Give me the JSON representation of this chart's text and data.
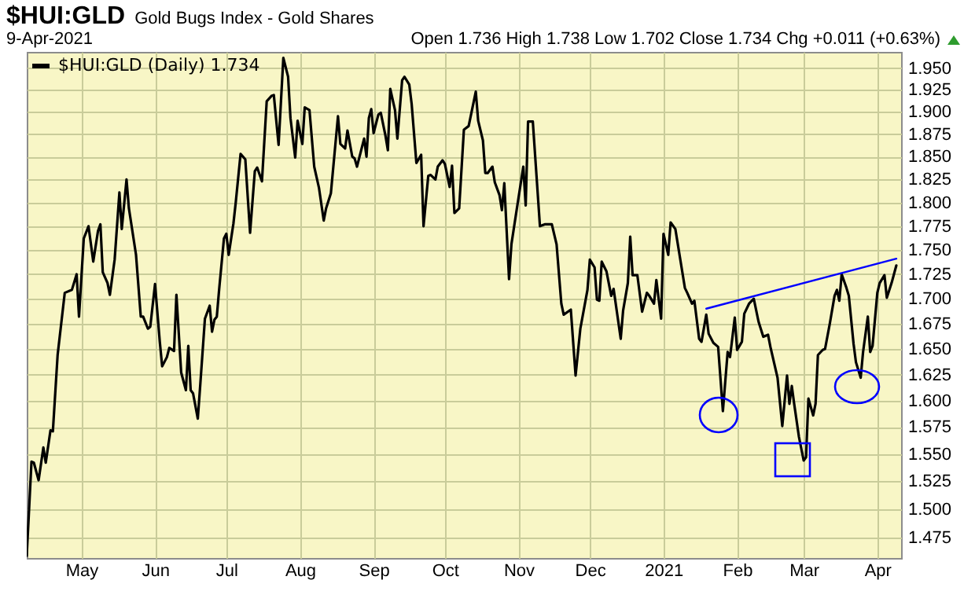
{
  "chart_data": {
    "type": "line",
    "title": "$HUI:GLD",
    "subtitle": "Gold Bugs Index - Gold Shares",
    "annotations": [
      "9-Apr-2021",
      "Open 1.736 High 1.738 Low 1.702 Close 1.734 Chg +0.011 (+0.63%)"
    ],
    "legend": "top left",
    "grid": true,
    "xlim": [
      "2020-04-08",
      "2021-04-11"
    ],
    "xticks": [
      {
        "value": "2020-05-01",
        "label": "May"
      },
      {
        "value": "2020-06-01",
        "label": "Jun"
      },
      {
        "value": "2020-07-01",
        "label": "Jul"
      },
      {
        "value": "2020-08-01",
        "label": "Aug"
      },
      {
        "value": "2020-09-01",
        "label": "Sep"
      },
      {
        "value": "2020-10-01",
        "label": "Oct"
      },
      {
        "value": "2020-11-01",
        "label": "Nov"
      },
      {
        "value": "2020-12-01",
        "label": "Dec"
      },
      {
        "value": "2021-01-01",
        "label": "2021"
      },
      {
        "value": "2021-02-01",
        "label": "Feb"
      },
      {
        "value": "2021-03-01",
        "label": "Mar"
      },
      {
        "value": "2021-04-01",
        "label": "Apr"
      }
    ],
    "log": "y",
    "ylim": [
      1.457,
      1.969
    ],
    "yticks": [
      {
        "value": 1.475,
        "label": "1.475"
      },
      {
        "value": 1.5,
        "label": "1.500"
      },
      {
        "value": 1.525,
        "label": "1.525"
      },
      {
        "value": 1.55,
        "label": "1.550"
      },
      {
        "value": 1.575,
        "label": "1.575"
      },
      {
        "value": 1.6,
        "label": "1.600"
      },
      {
        "value": 1.625,
        "label": "1.625"
      },
      {
        "value": 1.65,
        "label": "1.650"
      },
      {
        "value": 1.675,
        "label": "1.675"
      },
      {
        "value": 1.7,
        "label": "1.700"
      },
      {
        "value": 1.725,
        "label": "1.725"
      },
      {
        "value": 1.75,
        "label": "1.750"
      },
      {
        "value": 1.775,
        "label": "1.775"
      },
      {
        "value": 1.8,
        "label": "1.800"
      },
      {
        "value": 1.825,
        "label": "1.825"
      },
      {
        "value": 1.85,
        "label": "1.850"
      },
      {
        "value": 1.875,
        "label": "1.875"
      },
      {
        "value": 1.9,
        "label": "1.900"
      },
      {
        "value": 1.925,
        "label": "1.925"
      },
      {
        "value": 1.95,
        "label": "1.950"
      }
    ],
    "series": [
      {
        "name": "$HUI:GLD (Daily) 1.734",
        "color": "#000000",
        "x": [
          "2020-04-08",
          "2020-04-10",
          "2020-04-11",
          "2020-04-13",
          "2020-04-15",
          "2020-04-16",
          "2020-04-18",
          "2020-04-19",
          "2020-04-21",
          "2020-04-24",
          "2020-04-27",
          "2020-04-29",
          "2020-04-30",
          "2020-05-02",
          "2020-05-04",
          "2020-05-06",
          "2020-05-08",
          "2020-05-09",
          "2020-05-10",
          "2020-05-12",
          "2020-05-13",
          "2020-05-15",
          "2020-05-17",
          "2020-05-18",
          "2020-05-20",
          "2020-05-21",
          "2020-05-24",
          "2020-05-26",
          "2020-05-27",
          "2020-05-29",
          "2020-05-30",
          "2020-06-01",
          "2020-06-03",
          "2020-06-04",
          "2020-06-06",
          "2020-06-07",
          "2020-06-09",
          "2020-06-10",
          "2020-06-12",
          "2020-06-14",
          "2020-06-15",
          "2020-06-16",
          "2020-06-17",
          "2020-06-19",
          "2020-06-20",
          "2020-06-22",
          "2020-06-24",
          "2020-06-25",
          "2020-06-26",
          "2020-06-27",
          "2020-06-28",
          "2020-06-30",
          "2020-07-01",
          "2020-07-02",
          "2020-07-04",
          "2020-07-05",
          "2020-07-07",
          "2020-07-09",
          "2020-07-11",
          "2020-07-13",
          "2020-07-14",
          "2020-07-16",
          "2020-07-18",
          "2020-07-20",
          "2020-07-21",
          "2020-07-23",
          "2020-07-25",
          "2020-07-27",
          "2020-07-28",
          "2020-07-30",
          "2020-07-31",
          "2020-08-02",
          "2020-08-03",
          "2020-08-05",
          "2020-08-07",
          "2020-08-09",
          "2020-08-11",
          "2020-08-12",
          "2020-08-14",
          "2020-08-17",
          "2020-08-18",
          "2020-08-20",
          "2020-08-21",
          "2020-08-23",
          "2020-08-24",
          "2020-08-25",
          "2020-08-28",
          "2020-08-29",
          "2020-08-30",
          "2020-08-31",
          "2020-09-01",
          "2020-09-03",
          "2020-09-04",
          "2020-09-06",
          "2020-09-07",
          "2020-09-08",
          "2020-09-10",
          "2020-09-11",
          "2020-09-13",
          "2020-09-14",
          "2020-09-16",
          "2020-09-17",
          "2020-09-19",
          "2020-09-21",
          "2020-09-22",
          "2020-09-24",
          "2020-09-25",
          "2020-09-27",
          "2020-09-28",
          "2020-09-30",
          "2020-10-01",
          "2020-10-03",
          "2020-10-04",
          "2020-10-05",
          "2020-10-07",
          "2020-10-09",
          "2020-10-11",
          "2020-10-14",
          "2020-10-15",
          "2020-10-17",
          "2020-10-18",
          "2020-10-19",
          "2020-10-21",
          "2020-10-22",
          "2020-10-24",
          "2020-10-25",
          "2020-10-26",
          "2020-10-28",
          "2020-10-29",
          "2020-10-31",
          "2020-11-03",
          "2020-11-04",
          "2020-11-05",
          "2020-11-07",
          "2020-11-10",
          "2020-11-12",
          "2020-11-15",
          "2020-11-17",
          "2020-11-19",
          "2020-11-20",
          "2020-11-23",
          "2020-11-25",
          "2020-11-27",
          "2020-11-30",
          "2020-12-01",
          "2020-12-03",
          "2020-12-04",
          "2020-12-05",
          "2020-12-06",
          "2020-12-08",
          "2020-12-10",
          "2020-12-11",
          "2020-12-14",
          "2020-12-15",
          "2020-12-17",
          "2020-12-18",
          "2020-12-19",
          "2020-12-21",
          "2020-12-23",
          "2020-12-25",
          "2020-12-26",
          "2020-12-28",
          "2020-12-29",
          "2020-12-31",
          "2021-01-01",
          "2021-01-03",
          "2021-01-04",
          "2021-01-06",
          "2021-01-10",
          "2021-01-11",
          "2021-01-13",
          "2021-01-14",
          "2021-01-16",
          "2021-01-17",
          "2021-01-19",
          "2021-01-20",
          "2021-01-22",
          "2021-01-24",
          "2021-01-26",
          "2021-01-28",
          "2021-01-29",
          "2021-01-31",
          "2021-02-01",
          "2021-02-03",
          "2021-02-04",
          "2021-02-06",
          "2021-02-08",
          "2021-02-10",
          "2021-02-12",
          "2021-02-14",
          "2021-02-15",
          "2021-02-18",
          "2021-02-20",
          "2021-02-22",
          "2021-02-23",
          "2021-02-24",
          "2021-02-25",
          "2021-02-27",
          "2021-03-01",
          "2021-03-02",
          "2021-03-03",
          "2021-03-05",
          "2021-03-06",
          "2021-03-07",
          "2021-03-09",
          "2021-03-10",
          "2021-03-12",
          "2021-03-14",
          "2021-03-15",
          "2021-03-16",
          "2021-03-17",
          "2021-03-19",
          "2021-03-20",
          "2021-03-22",
          "2021-03-23",
          "2021-03-25",
          "2021-03-26",
          "2021-03-28",
          "2021-03-29",
          "2021-03-30",
          "2021-04-01",
          "2021-04-02",
          "2021-04-04",
          "2021-04-05",
          "2021-04-07",
          "2021-04-09"
        ],
        "values": [
          1.459,
          1.543,
          1.542,
          1.526,
          1.556,
          1.542,
          1.572,
          1.571,
          1.644,
          1.706,
          1.709,
          1.725,
          1.682,
          1.762,
          1.775,
          1.738,
          1.77,
          1.777,
          1.727,
          1.716,
          1.704,
          1.74,
          1.811,
          1.772,
          1.825,
          1.794,
          1.745,
          1.682,
          1.682,
          1.67,
          1.672,
          1.715,
          1.657,
          1.633,
          1.642,
          1.651,
          1.648,
          1.704,
          1.627,
          1.61,
          1.653,
          1.61,
          1.607,
          1.583,
          1.614,
          1.68,
          1.693,
          1.667,
          1.679,
          1.682,
          1.71,
          1.762,
          1.767,
          1.745,
          1.778,
          1.801,
          1.853,
          1.847,
          1.768,
          1.834,
          1.838,
          1.823,
          1.912,
          1.918,
          1.919,
          1.863,
          1.962,
          1.94,
          1.893,
          1.849,
          1.89,
          1.864,
          1.905,
          1.902,
          1.839,
          1.816,
          1.781,
          1.794,
          1.81,
          1.895,
          1.864,
          1.859,
          1.879,
          1.85,
          1.848,
          1.839,
          1.87,
          1.85,
          1.893,
          1.903,
          1.876,
          1.897,
          1.899,
          1.873,
          1.857,
          1.926,
          1.902,
          1.87,
          1.936,
          1.94,
          1.931,
          1.909,
          1.843,
          1.852,
          1.775,
          1.829,
          1.83,
          1.825,
          1.839,
          1.846,
          1.842,
          1.817,
          1.84,
          1.789,
          1.794,
          1.88,
          1.884,
          1.923,
          1.89,
          1.868,
          1.832,
          1.832,
          1.839,
          1.822,
          1.808,
          1.792,
          1.821,
          1.72,
          1.756,
          1.789,
          1.839,
          1.797,
          1.889,
          1.889,
          1.775,
          1.777,
          1.777,
          1.756,
          1.695,
          1.684,
          1.689,
          1.624,
          1.67,
          1.709,
          1.74,
          1.732,
          1.699,
          1.698,
          1.738,
          1.728,
          1.703,
          1.71,
          1.66,
          1.688,
          1.716,
          1.764,
          1.724,
          1.724,
          1.687,
          1.706,
          1.703,
          1.695,
          1.719,
          1.68,
          1.767,
          1.745,
          1.779,
          1.772,
          1.711,
          1.706,
          1.695,
          1.698,
          1.66,
          1.657,
          1.684,
          1.665,
          1.656,
          1.652,
          1.59,
          1.647,
          1.642,
          1.681,
          1.649,
          1.657,
          1.685,
          1.695,
          1.7,
          1.677,
          1.662,
          1.664,
          1.652,
          1.622,
          1.576,
          1.624,
          1.597,
          1.614,
          1.597,
          1.566,
          1.544,
          1.547,
          1.602,
          1.586,
          1.597,
          1.644,
          1.649,
          1.65,
          1.675,
          1.703,
          1.709,
          1.698,
          1.725,
          1.711,
          1.703,
          1.655,
          1.637,
          1.622,
          1.647,
          1.682,
          1.647,
          1.653,
          1.706,
          1.716,
          1.724,
          1.701,
          1.716,
          1.734
        ]
      },
      {
        "type": "line",
        "color": "#0000ff",
        "x": [
          "2021-01-19",
          "2021-04-09"
        ],
        "values": [
          1.69,
          1.741
        ]
      }
    ]
  }
}
